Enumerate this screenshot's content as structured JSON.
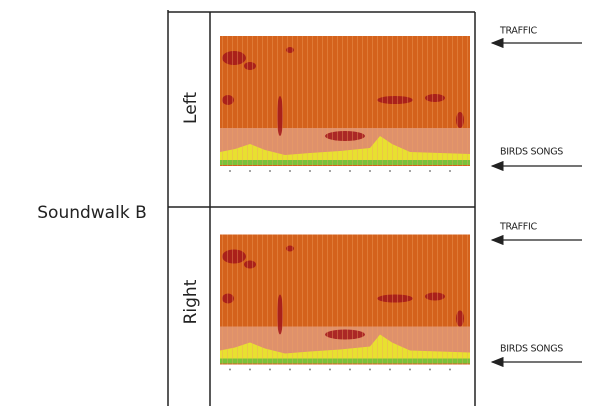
{
  "figure": {
    "label": "Soundwalk B",
    "channels": [
      {
        "label": "Left",
        "annotations": [
          "TRAFFIC",
          "BIRDS SONGS"
        ]
      },
      {
        "label": "Right",
        "annotations": [
          "TRAFFIC",
          "BIRDS SONGS"
        ]
      }
    ]
  }
}
